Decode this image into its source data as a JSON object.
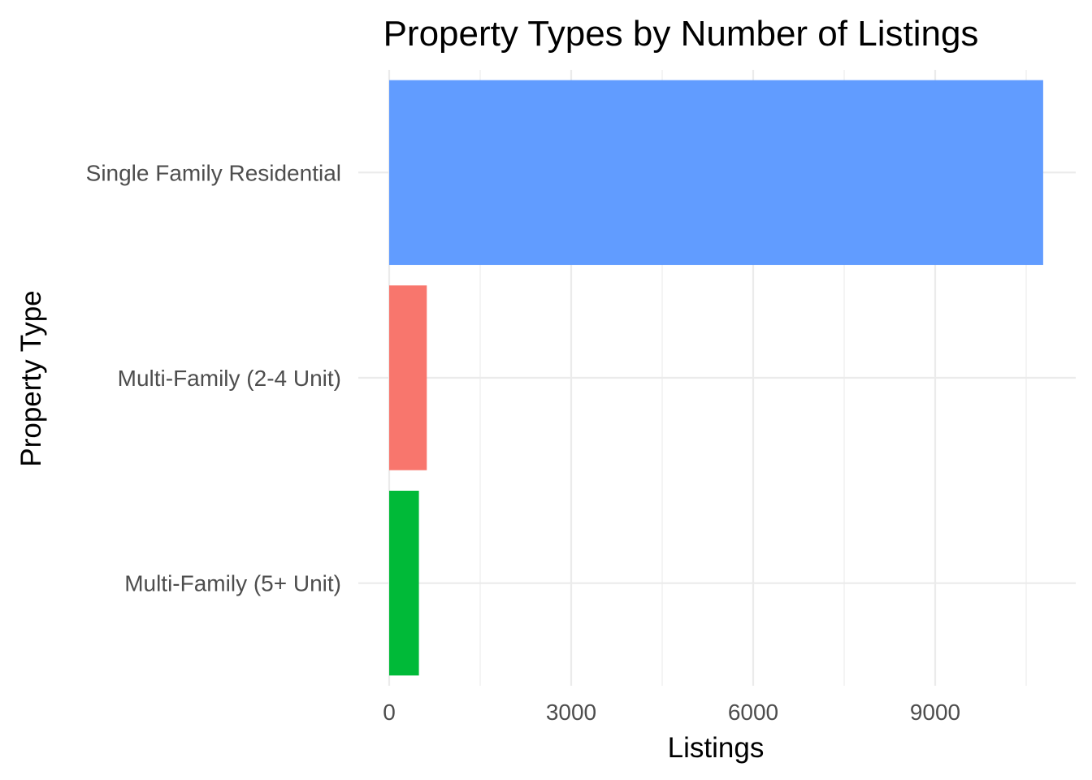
{
  "chart_data": {
    "type": "bar",
    "orientation": "horizontal",
    "title": "Property Types by Number of Listings",
    "xlabel": "Listings",
    "ylabel": "Property Type",
    "categories": [
      "Single Family Residential",
      "Multi-Family (2-4 Unit)",
      "Multi-Family (5+ Unit)"
    ],
    "values": [
      10780,
      620,
      490
    ],
    "colors": [
      "#619CFF",
      "#F8766D",
      "#00BA38"
    ],
    "xlim": [
      0,
      11300
    ],
    "x_ticks": [
      0,
      3000,
      6000,
      9000
    ],
    "x_tick_labels": [
      "0",
      "3000",
      "6000",
      "9000"
    ],
    "grid": true,
    "legend": "none"
  }
}
